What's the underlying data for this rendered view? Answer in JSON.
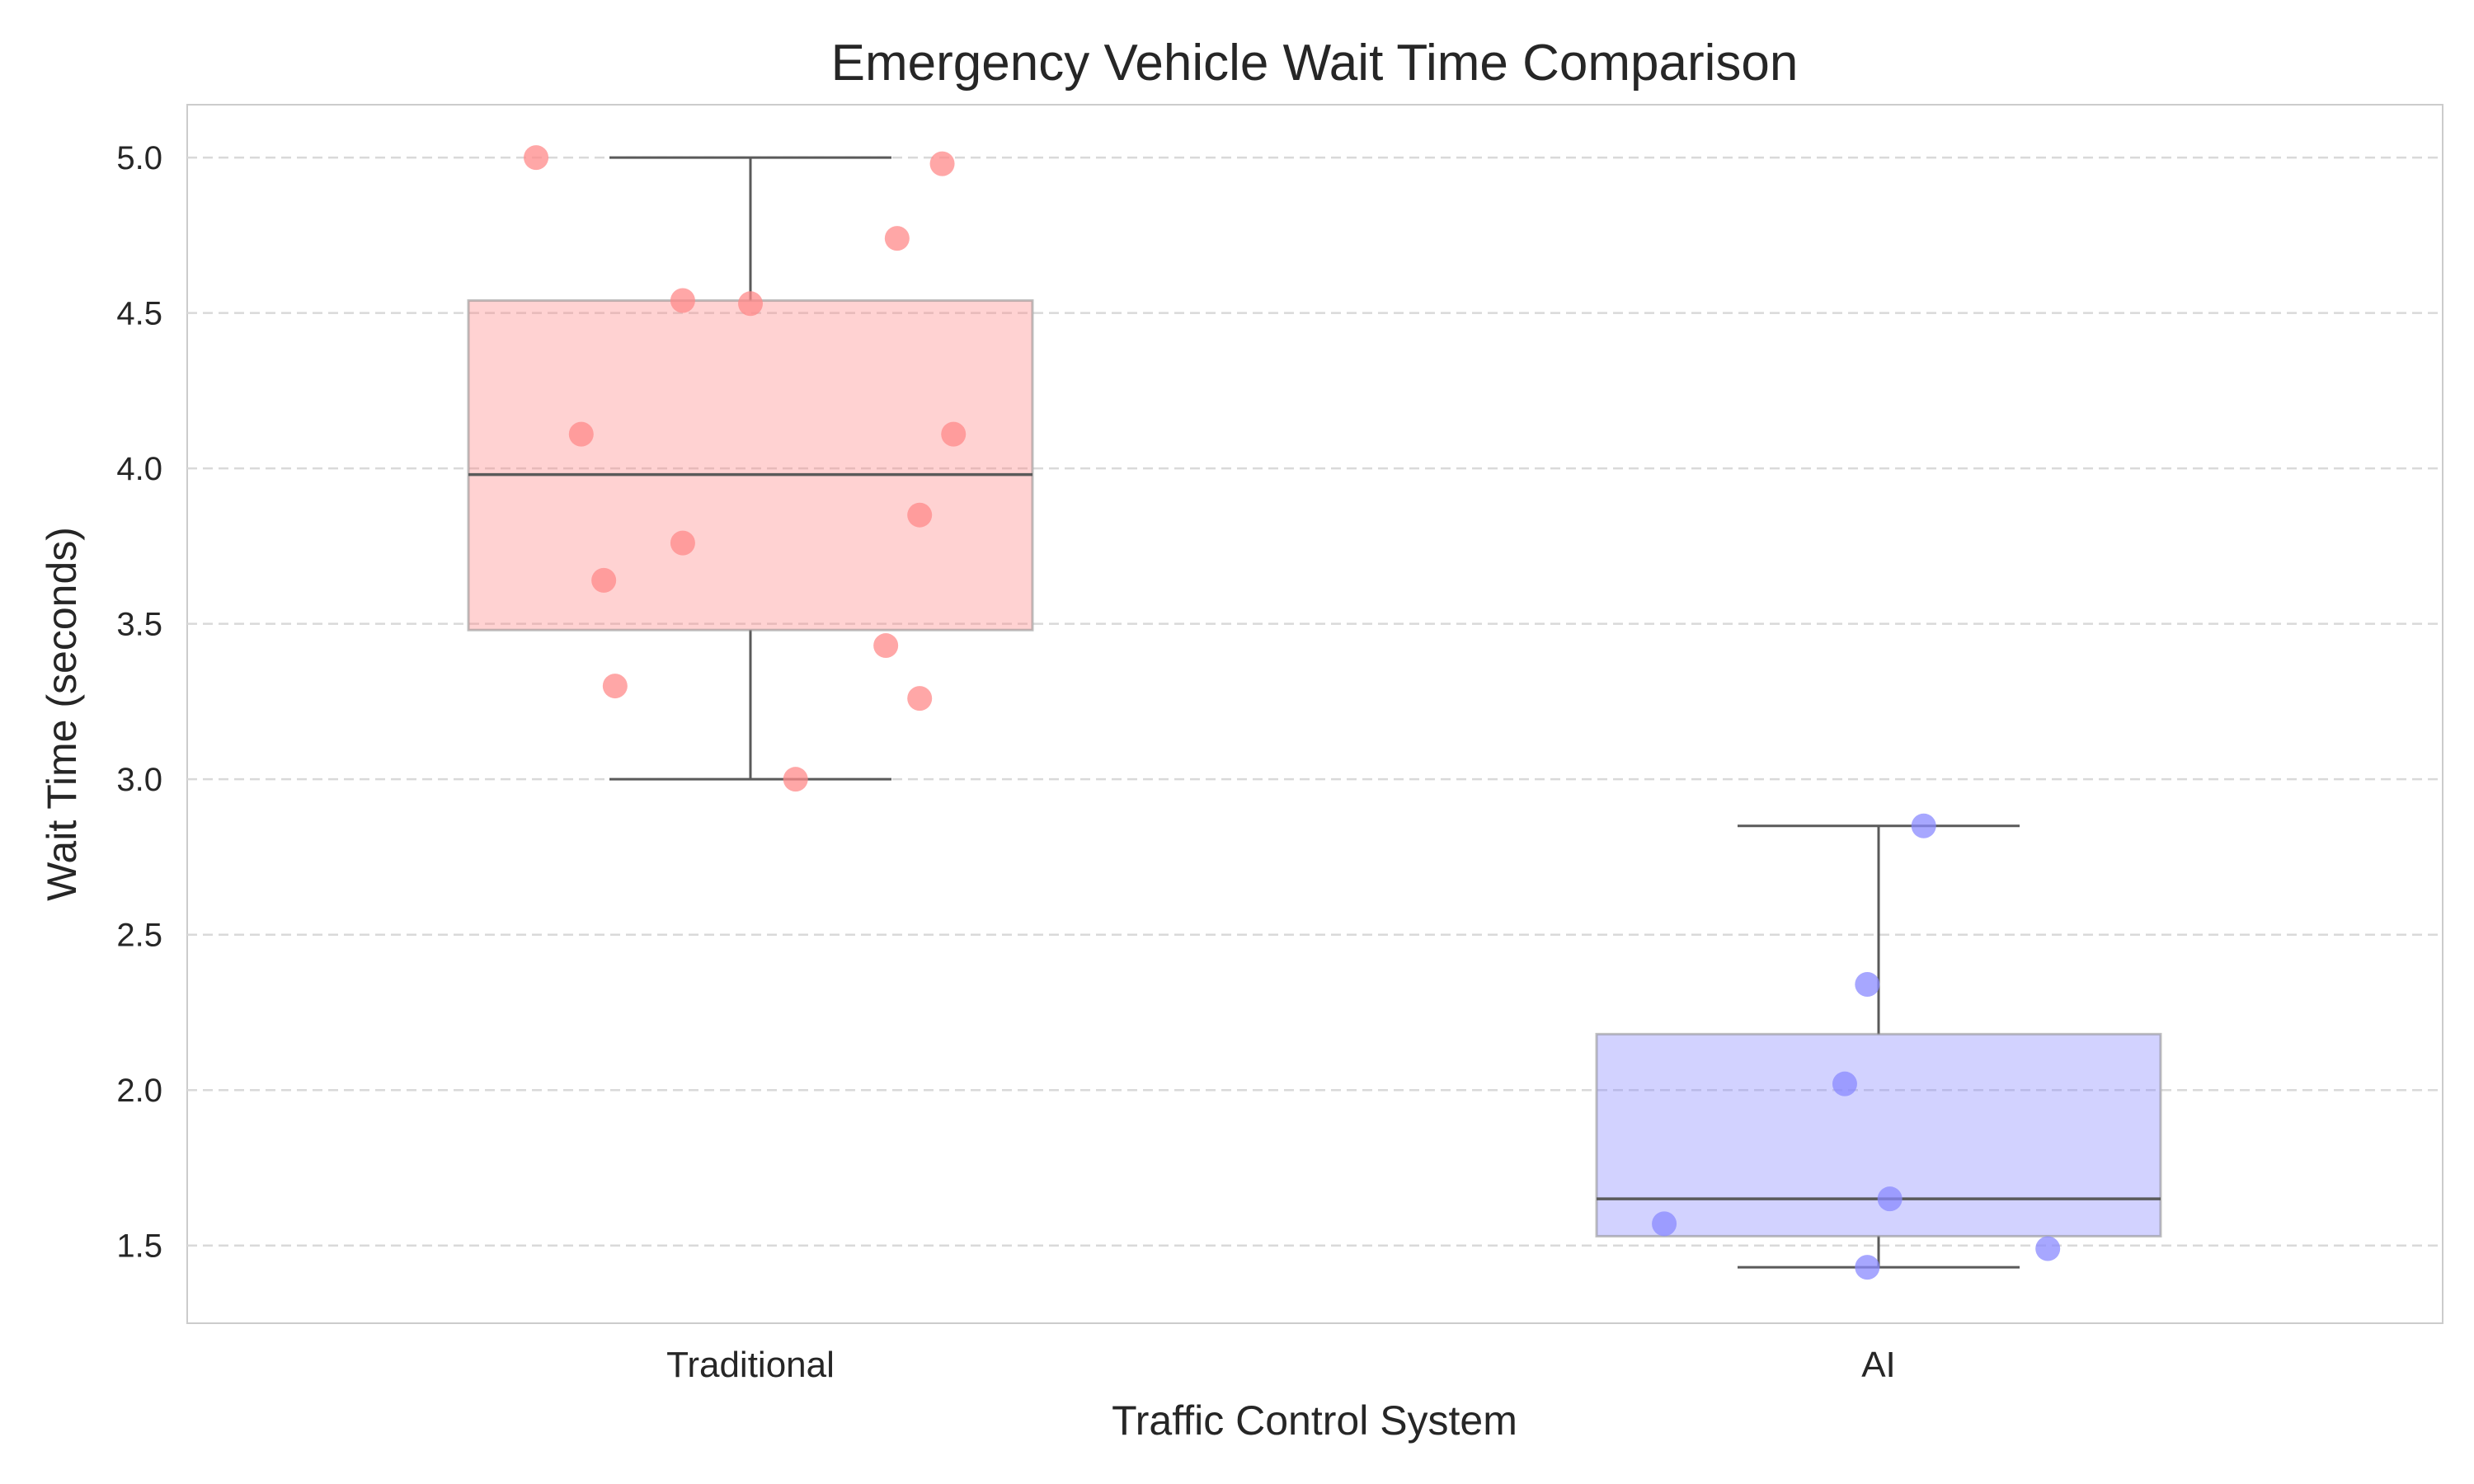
{
  "chart_data": {
    "type": "box",
    "title": "Emergency Vehicle Wait Time Comparison",
    "xlabel": "Traffic Control System",
    "ylabel": "Wait Time (seconds)",
    "ylim": [
      1.25,
      5.17
    ],
    "yticks": [
      "1.5",
      "2.0",
      "2.5",
      "3.0",
      "3.5",
      "4.0",
      "4.5",
      "5.0"
    ],
    "grid": "y-dashed",
    "categories": [
      "Traditional",
      "AI"
    ],
    "series": [
      {
        "category": "Traditional",
        "color": "#ff8a8a",
        "box": {
          "whisker_low": 3.0,
          "q1": 3.48,
          "median": 3.98,
          "q3": 4.54,
          "whisker_high": 5.0
        },
        "points": [
          {
            "x": -0.19,
            "y": 5.0
          },
          {
            "x": 0.17,
            "y": 4.98
          },
          {
            "x": 0.13,
            "y": 4.74
          },
          {
            "x": -0.06,
            "y": 4.54
          },
          {
            "x": 0.0,
            "y": 4.53
          },
          {
            "x": -0.15,
            "y": 4.11
          },
          {
            "x": 0.18,
            "y": 4.11
          },
          {
            "x": 0.15,
            "y": 3.85
          },
          {
            "x": -0.06,
            "y": 3.76
          },
          {
            "x": -0.13,
            "y": 3.64
          },
          {
            "x": 0.12,
            "y": 3.43
          },
          {
            "x": -0.12,
            "y": 3.3
          },
          {
            "x": 0.15,
            "y": 3.26
          },
          {
            "x": 0.04,
            "y": 3.0
          }
        ]
      },
      {
        "category": "AI",
        "color": "#8a8aff",
        "box": {
          "whisker_low": 1.43,
          "q1": 1.53,
          "median": 1.65,
          "q3": 2.18,
          "whisker_high": 2.85
        },
        "points": [
          {
            "x": 0.04,
            "y": 2.85
          },
          {
            "x": -0.01,
            "y": 2.34
          },
          {
            "x": -0.03,
            "y": 2.02
          },
          {
            "x": 0.01,
            "y": 1.65
          },
          {
            "x": -0.19,
            "y": 1.57
          },
          {
            "x": 0.15,
            "y": 1.49
          },
          {
            "x": -0.01,
            "y": 1.43
          }
        ]
      }
    ]
  }
}
